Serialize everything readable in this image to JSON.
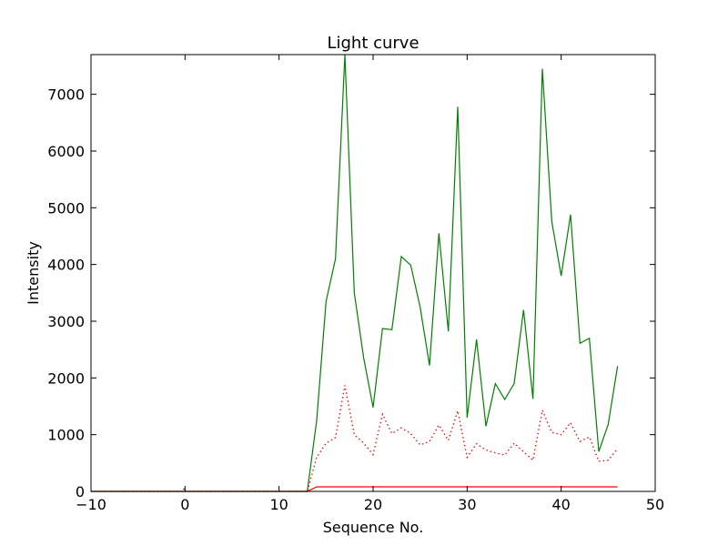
{
  "chart_data": {
    "type": "line",
    "title": "Light curve",
    "xlabel": "Sequence No.",
    "ylabel": "Intensity",
    "xlim": [
      -10,
      50
    ],
    "ylim": [
      0,
      7700
    ],
    "xticks": [
      -10,
      0,
      10,
      20,
      30,
      40,
      50
    ],
    "yticks": [
      0,
      1000,
      2000,
      3000,
      4000,
      5000,
      6000,
      7000
    ],
    "grid": false,
    "series": [
      {
        "color": "#008000",
        "style": "solid",
        "x": [
          -10,
          -9,
          -8,
          -7,
          -6,
          -5,
          -4,
          -3,
          -2,
          -1,
          0,
          1,
          2,
          3,
          4,
          5,
          6,
          7,
          8,
          9,
          10,
          11,
          12,
          13,
          14,
          15,
          16,
          17,
          18,
          19,
          20,
          21,
          22,
          23,
          24,
          25,
          26,
          27,
          28,
          29,
          30,
          31,
          32,
          33,
          34,
          35,
          36,
          37,
          38,
          39,
          40,
          41,
          42,
          43,
          44,
          45,
          46
        ],
        "values": [
          0,
          0,
          0,
          0,
          0,
          0,
          0,
          0,
          0,
          0,
          0,
          0,
          0,
          0,
          0,
          0,
          0,
          0,
          0,
          0,
          0,
          0,
          0,
          0,
          1250,
          3350,
          4100,
          7700,
          3500,
          2350,
          1480,
          2870,
          2850,
          4140,
          3990,
          3250,
          2220,
          4550,
          2820,
          6780,
          1300,
          2680,
          1150,
          1900,
          1620,
          1900,
          3200,
          1630,
          7450,
          4760,
          3800,
          4880,
          2610,
          2700,
          700,
          1180,
          2210
        ]
      },
      {
        "color": "#ff0000",
        "style": "dotted",
        "x": [
          -10,
          -9,
          -8,
          -7,
          -6,
          -5,
          -4,
          -3,
          -2,
          -1,
          0,
          1,
          2,
          3,
          4,
          5,
          6,
          7,
          8,
          9,
          10,
          11,
          12,
          13,
          14,
          15,
          16,
          17,
          18,
          19,
          20,
          21,
          22,
          23,
          24,
          25,
          26,
          27,
          28,
          29,
          30,
          31,
          32,
          33,
          34,
          35,
          36,
          37,
          38,
          39,
          40,
          41,
          42,
          43,
          44,
          45,
          46
        ],
        "values": [
          0,
          0,
          0,
          0,
          0,
          0,
          0,
          0,
          0,
          0,
          0,
          0,
          0,
          0,
          0,
          0,
          0,
          0,
          0,
          0,
          0,
          0,
          0,
          0,
          600,
          850,
          950,
          1870,
          1000,
          850,
          650,
          1360,
          1020,
          1120,
          1020,
          820,
          880,
          1170,
          900,
          1420,
          600,
          840,
          730,
          680,
          640,
          850,
          700,
          550,
          1430,
          1040,
          1000,
          1210,
          880,
          960,
          530,
          550,
          750
        ]
      },
      {
        "color": "#ff0000",
        "style": "solid",
        "x": [
          -10,
          -9,
          -8,
          -7,
          -6,
          -5,
          -4,
          -3,
          -2,
          -1,
          0,
          1,
          2,
          3,
          4,
          5,
          6,
          7,
          8,
          9,
          10,
          11,
          12,
          13,
          14,
          15,
          16,
          17,
          18,
          19,
          20,
          21,
          22,
          23,
          24,
          25,
          26,
          27,
          28,
          29,
          30,
          31,
          32,
          33,
          34,
          35,
          36,
          37,
          38,
          39,
          40,
          41,
          42,
          43,
          44,
          45,
          46
        ],
        "values": [
          0,
          0,
          0,
          0,
          0,
          0,
          0,
          0,
          0,
          0,
          0,
          0,
          0,
          0,
          0,
          0,
          0,
          0,
          0,
          0,
          0,
          0,
          0,
          0,
          80,
          80,
          80,
          80,
          80,
          80,
          80,
          80,
          80,
          80,
          80,
          80,
          80,
          80,
          80,
          80,
          80,
          80,
          80,
          80,
          80,
          80,
          80,
          80,
          80,
          80,
          80,
          80,
          80,
          80,
          80,
          80,
          80
        ]
      },
      {
        "color": "#0000ff",
        "style": "solid",
        "x": [
          -0.2,
          0.0
        ],
        "values": [
          40,
          40
        ]
      }
    ]
  }
}
